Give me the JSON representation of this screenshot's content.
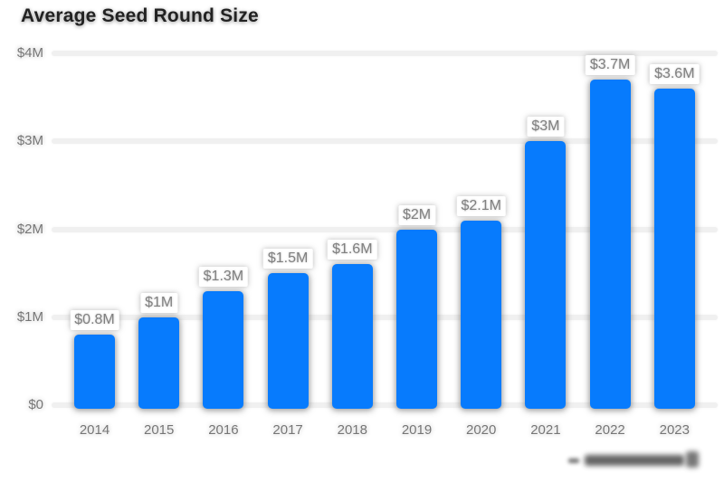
{
  "page": {
    "background": "#ffffff"
  },
  "chart_data": {
    "type": "bar",
    "title": "Average Seed Round Size",
    "categories": [
      "2014",
      "2015",
      "2016",
      "2017",
      "2018",
      "2019",
      "2020",
      "2021",
      "2022",
      "2023"
    ],
    "values": [
      0.8,
      1.0,
      1.3,
      1.5,
      1.6,
      2.0,
      2.1,
      3.0,
      3.7,
      3.6
    ],
    "value_labels": [
      "$0.8M",
      "$1M",
      "$1.3M",
      "$1.5M",
      "$1.6M",
      "$2M",
      "$2.1M",
      "$3M",
      "$3.7M",
      "$3.6M"
    ],
    "y_ticks": [
      {
        "label": "$0",
        "value": 0
      },
      {
        "label": "$1M",
        "value": 1
      },
      {
        "label": "$2M",
        "value": 2
      },
      {
        "label": "$3M",
        "value": 3
      },
      {
        "label": "$4M",
        "value": 4
      }
    ],
    "ylim": [
      0,
      4
    ],
    "xlabel": "",
    "ylabel": "",
    "grid": true,
    "legend": "none",
    "colors": {
      "bar": "#077bfd",
      "gridline": "#f0f0f0",
      "axis_text": "#757575",
      "data_label_text": "#808080",
      "title_text": "#222222"
    }
  },
  "footer": {
    "watermark_icon": "blurred-logo-mark"
  }
}
